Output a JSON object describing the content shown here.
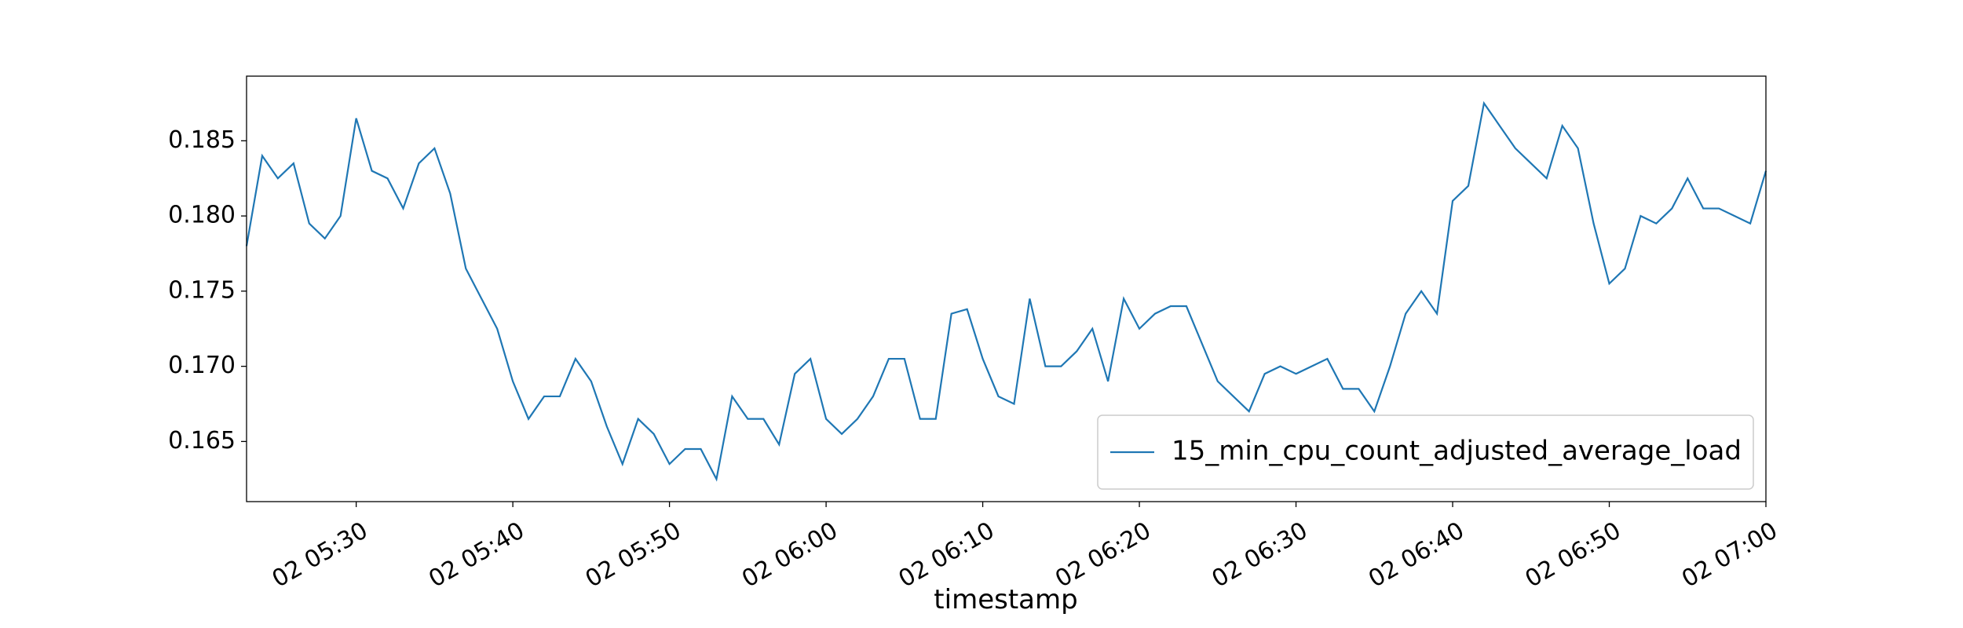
{
  "chart_data": {
    "type": "line",
    "x_label": "timestamp",
    "x": [
      "02 05:23",
      "02 05:24",
      "02 05:25",
      "02 05:26",
      "02 05:27",
      "02 05:28",
      "02 05:29",
      "02 05:30",
      "02 05:31",
      "02 05:32",
      "02 05:33",
      "02 05:34",
      "02 05:35",
      "02 05:36",
      "02 05:37",
      "02 05:38",
      "02 05:39",
      "02 05:40",
      "02 05:41",
      "02 05:42",
      "02 05:43",
      "02 05:44",
      "02 05:45",
      "02 05:46",
      "02 05:47",
      "02 05:48",
      "02 05:49",
      "02 05:50",
      "02 05:51",
      "02 05:52",
      "02 05:53",
      "02 05:54",
      "02 05:55",
      "02 05:56",
      "02 05:57",
      "02 05:58",
      "02 05:59",
      "02 06:00",
      "02 06:01",
      "02 06:02",
      "02 06:03",
      "02 06:04",
      "02 06:05",
      "02 06:06",
      "02 06:07",
      "02 06:08",
      "02 06:09",
      "02 06:10",
      "02 06:11",
      "02 06:12",
      "02 06:13",
      "02 06:14",
      "02 06:15",
      "02 06:16",
      "02 06:17",
      "02 06:18",
      "02 06:19",
      "02 06:20",
      "02 06:21",
      "02 06:22",
      "02 06:23",
      "02 06:24",
      "02 06:25",
      "02 06:26",
      "02 06:27",
      "02 06:28",
      "02 06:29",
      "02 06:30",
      "02 06:31",
      "02 06:32",
      "02 06:33",
      "02 06:34",
      "02 06:35",
      "02 06:36",
      "02 06:37",
      "02 06:38",
      "02 06:39",
      "02 06:40",
      "02 06:41",
      "02 06:42",
      "02 06:43",
      "02 06:44",
      "02 06:45",
      "02 06:46",
      "02 06:47",
      "02 06:48",
      "02 06:49",
      "02 06:50",
      "02 06:51",
      "02 06:52",
      "02 06:53",
      "02 06:54",
      "02 06:55",
      "02 06:56",
      "02 06:57",
      "02 06:58",
      "02 06:59",
      "02 07:00"
    ],
    "series": [
      {
        "name": "15_min_cpu_count_adjusted_average_load",
        "color": "#1f77b4",
        "values": [
          0.178,
          0.184,
          0.1825,
          0.1835,
          0.1795,
          0.1785,
          0.18,
          0.1865,
          0.183,
          0.1825,
          0.1805,
          0.1835,
          0.1845,
          0.1815,
          0.1765,
          0.1745,
          0.1725,
          0.169,
          0.1665,
          0.168,
          0.168,
          0.1705,
          0.169,
          0.166,
          0.1635,
          0.1665,
          0.1655,
          0.1635,
          0.1645,
          0.1645,
          0.1625,
          0.168,
          0.1665,
          0.1665,
          0.1648,
          0.1695,
          0.1705,
          0.1665,
          0.1655,
          0.1665,
          0.168,
          0.1705,
          0.1705,
          0.1665,
          0.1665,
          0.1735,
          0.1738,
          0.1705,
          0.168,
          0.1675,
          0.1745,
          0.17,
          0.17,
          0.171,
          0.1725,
          0.169,
          0.1745,
          0.1725,
          0.1735,
          0.174,
          0.174,
          0.1715,
          0.169,
          0.168,
          0.167,
          0.1695,
          0.17,
          0.1695,
          0.17,
          0.1705,
          0.1685,
          0.1685,
          0.167,
          0.17,
          0.1735,
          0.175,
          0.1735,
          0.181,
          0.182,
          0.1875,
          0.186,
          0.1845,
          0.1835,
          0.1825,
          0.186,
          0.1845,
          0.1795,
          0.1755,
          0.1765,
          0.18,
          0.1795,
          0.1805,
          0.1825,
          0.1805,
          0.1805,
          0.18,
          0.1795,
          0.183
        ]
      }
    ],
    "xlim": [
      "02 05:23",
      "02 07:00"
    ],
    "xticks": [
      "02 05:30",
      "02 05:40",
      "02 05:50",
      "02 06:00",
      "02 06:10",
      "02 06:20",
      "02 06:30",
      "02 06:40",
      "02 06:50",
      "02 07:00"
    ],
    "ylim": [
      0.161,
      0.1893
    ],
    "yticks": [
      0.165,
      {
        "value": 0.17,
        "label": "0.170"
      },
      0.175,
      {
        "value": 0.18,
        "label": "0.180"
      },
      0.185
    ],
    "legend_position": "lower right"
  }
}
